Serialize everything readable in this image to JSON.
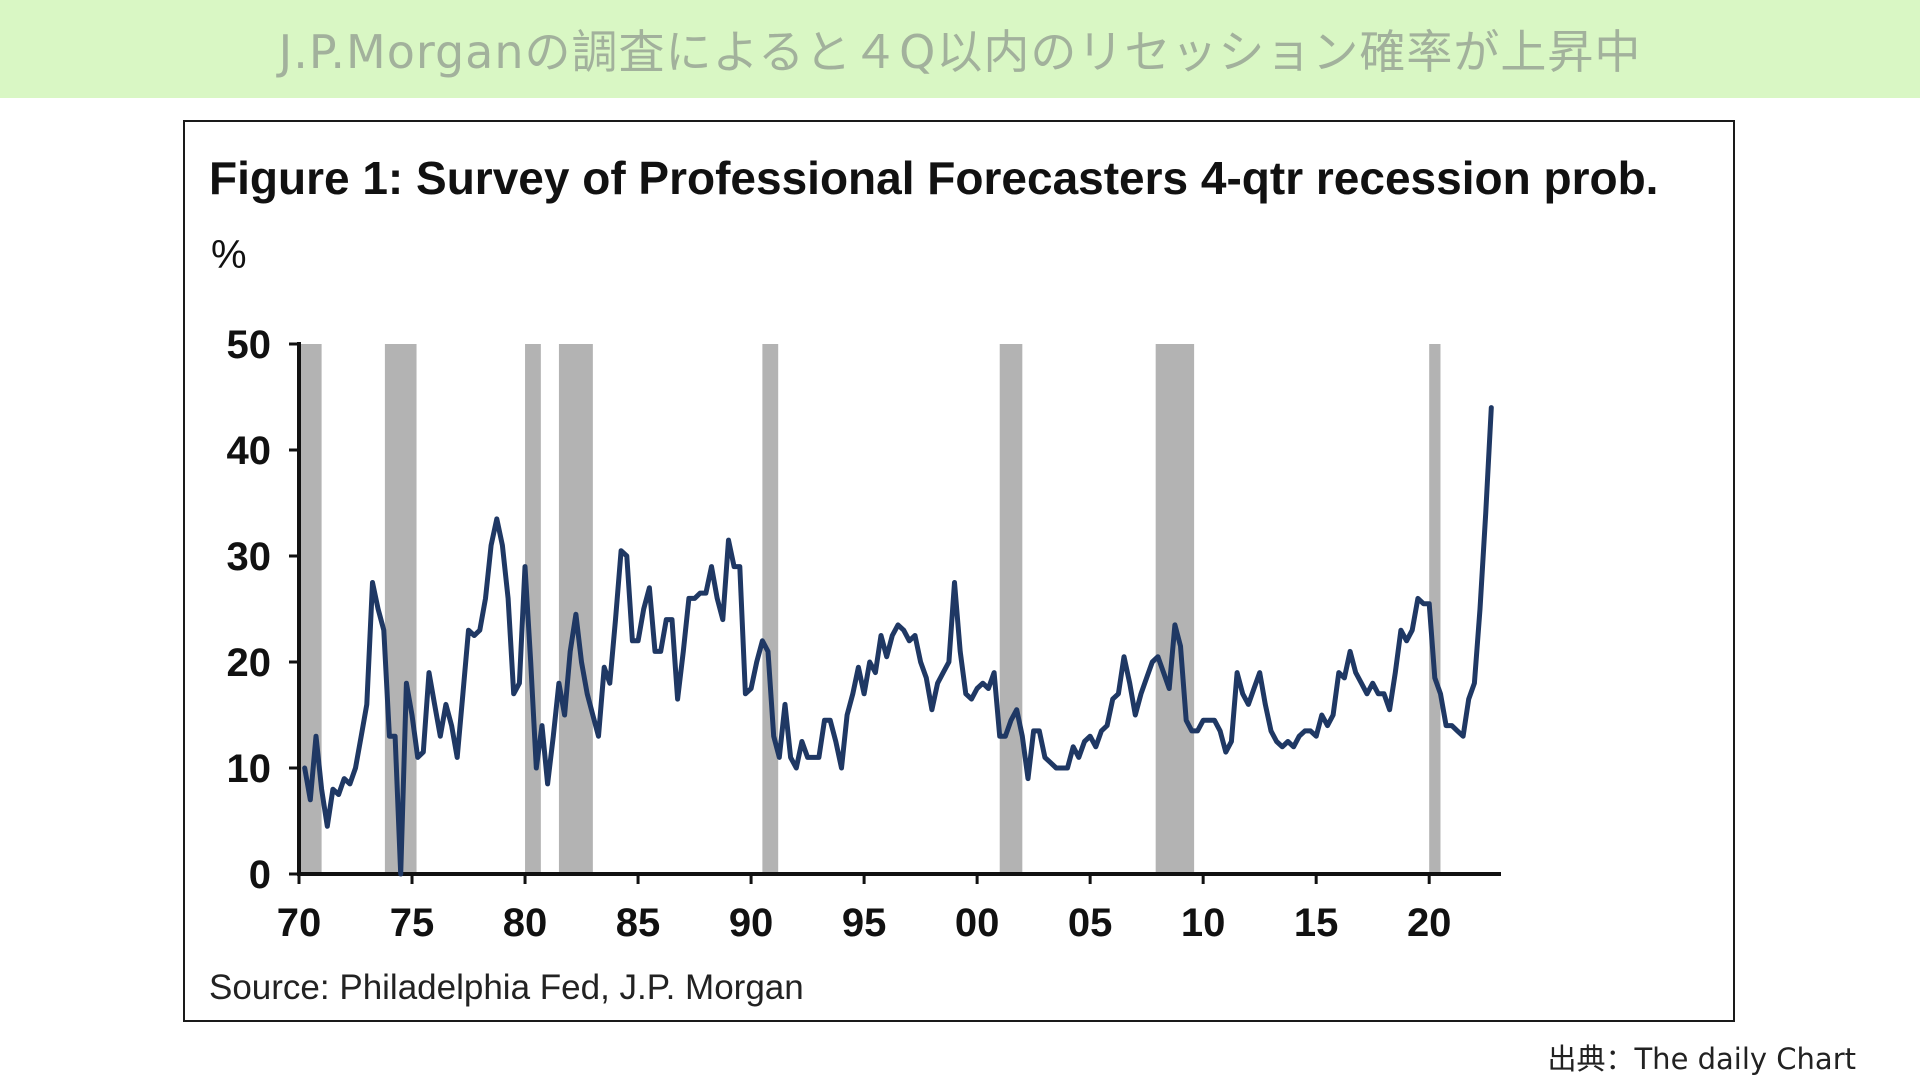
{
  "banner": {
    "title": "J.P.Morganの調査によると４Q以内のリセッション確率が上昇中",
    "bg_color": "#d9f7c4",
    "text_color": "#a2b19c"
  },
  "credit": "出典：The daily Chart",
  "chart_data": {
    "type": "line",
    "title": "Figure 1: Survey of Professional Forecasters 4-qtr recession prob.",
    "ylabel": "%",
    "source": "Source: Philadelphia Fed, J.P. Morgan",
    "xlim": [
      1970,
      2023
    ],
    "ylim": [
      0,
      50
    ],
    "x_tick_values": [
      1970,
      1975,
      1980,
      1985,
      1990,
      1995,
      2000,
      2005,
      2010,
      2015,
      2020
    ],
    "x_tick_labels": [
      "70",
      "75",
      "80",
      "85",
      "90",
      "95",
      "00",
      "05",
      "10",
      "15",
      "20"
    ],
    "y_ticks": [
      0,
      10,
      20,
      30,
      40,
      50
    ],
    "line_color": "#1f3864",
    "recession_color": "#b3b3b3",
    "recessions": [
      [
        1970.0,
        1971.0
      ],
      [
        1973.8,
        1975.2
      ],
      [
        1980.0,
        1980.7
      ],
      [
        1981.5,
        1983.0
      ],
      [
        1990.5,
        1991.2
      ],
      [
        2001.0,
        2002.0
      ],
      [
        2007.9,
        2009.6
      ],
      [
        2020.0,
        2020.5
      ]
    ],
    "series": [
      {
        "values": [
          [
            1970.25,
            10
          ],
          [
            1970.5,
            7
          ],
          [
            1970.75,
            13
          ],
          [
            1971.0,
            8
          ],
          [
            1971.25,
            4.5
          ],
          [
            1971.5,
            8
          ],
          [
            1971.75,
            7.5
          ],
          [
            1972.0,
            9
          ],
          [
            1972.25,
            8.5
          ],
          [
            1972.5,
            10
          ],
          [
            1972.75,
            13
          ],
          [
            1973.0,
            16
          ],
          [
            1973.25,
            27.5
          ],
          [
            1973.5,
            25
          ],
          [
            1973.75,
            23
          ],
          [
            1974.0,
            13
          ],
          [
            1974.25,
            13
          ],
          [
            1974.5,
            0
          ],
          [
            1974.75,
            18
          ],
          [
            1975.0,
            15
          ],
          [
            1975.25,
            11
          ],
          [
            1975.5,
            11.5
          ],
          [
            1975.75,
            19
          ],
          [
            1976.0,
            16
          ],
          [
            1976.25,
            13
          ],
          [
            1976.5,
            16
          ],
          [
            1976.75,
            14
          ],
          [
            1977.0,
            11
          ],
          [
            1977.25,
            17
          ],
          [
            1977.5,
            23
          ],
          [
            1977.75,
            22.5
          ],
          [
            1978.0,
            23
          ],
          [
            1978.25,
            26
          ],
          [
            1978.5,
            31
          ],
          [
            1978.75,
            33.5
          ],
          [
            1979.0,
            31
          ],
          [
            1979.25,
            26
          ],
          [
            1979.5,
            17
          ],
          [
            1979.75,
            18
          ],
          [
            1980.0,
            29
          ],
          [
            1980.25,
            20
          ],
          [
            1980.5,
            10
          ],
          [
            1980.75,
            14
          ],
          [
            1981.0,
            8.5
          ],
          [
            1981.25,
            13
          ],
          [
            1981.5,
            18
          ],
          [
            1981.75,
            15
          ],
          [
            1982.0,
            21
          ],
          [
            1982.25,
            24.5
          ],
          [
            1982.5,
            20
          ],
          [
            1982.75,
            17
          ],
          [
            1983.0,
            15
          ],
          [
            1983.25,
            13
          ],
          [
            1983.5,
            19.5
          ],
          [
            1983.75,
            18
          ],
          [
            1984.0,
            24
          ],
          [
            1984.25,
            30.5
          ],
          [
            1984.5,
            30
          ],
          [
            1984.75,
            22
          ],
          [
            1985.0,
            22
          ],
          [
            1985.25,
            25
          ],
          [
            1985.5,
            27
          ],
          [
            1985.75,
            21
          ],
          [
            1986.0,
            21
          ],
          [
            1986.25,
            24
          ],
          [
            1986.5,
            24
          ],
          [
            1986.75,
            16.5
          ],
          [
            1987.0,
            21
          ],
          [
            1987.25,
            26
          ],
          [
            1987.5,
            26
          ],
          [
            1987.75,
            26.5
          ],
          [
            1988.0,
            26.5
          ],
          [
            1988.25,
            29
          ],
          [
            1988.5,
            26
          ],
          [
            1988.75,
            24
          ],
          [
            1989.0,
            31.5
          ],
          [
            1989.25,
            29
          ],
          [
            1989.5,
            29
          ],
          [
            1989.75,
            17
          ],
          [
            1990.0,
            17.5
          ],
          [
            1990.25,
            20
          ],
          [
            1990.5,
            22
          ],
          [
            1990.75,
            21
          ],
          [
            1991.0,
            13
          ],
          [
            1991.25,
            11
          ],
          [
            1991.5,
            16
          ],
          [
            1991.75,
            11
          ],
          [
            1992.0,
            10
          ],
          [
            1992.25,
            12.5
          ],
          [
            1992.5,
            11
          ],
          [
            1992.75,
            11
          ],
          [
            1993.0,
            11
          ],
          [
            1993.25,
            14.5
          ],
          [
            1993.5,
            14.5
          ],
          [
            1993.75,
            12.5
          ],
          [
            1994.0,
            10
          ],
          [
            1994.25,
            15
          ],
          [
            1994.5,
            17
          ],
          [
            1994.75,
            19.5
          ],
          [
            1995.0,
            17
          ],
          [
            1995.25,
            20
          ],
          [
            1995.5,
            19
          ],
          [
            1995.75,
            22.5
          ],
          [
            1996.0,
            20.5
          ],
          [
            1996.25,
            22.5
          ],
          [
            1996.5,
            23.5
          ],
          [
            1996.75,
            23
          ],
          [
            1997.0,
            22
          ],
          [
            1997.25,
            22.5
          ],
          [
            1997.5,
            20
          ],
          [
            1997.75,
            18.5
          ],
          [
            1998.0,
            15.5
          ],
          [
            1998.25,
            18
          ],
          [
            1998.5,
            19
          ],
          [
            1998.75,
            20
          ],
          [
            1999.0,
            27.5
          ],
          [
            1999.25,
            21
          ],
          [
            1999.5,
            17
          ],
          [
            1999.75,
            16.5
          ],
          [
            2000.0,
            17.5
          ],
          [
            2000.25,
            18
          ],
          [
            2000.5,
            17.5
          ],
          [
            2000.75,
            19
          ],
          [
            2001.0,
            13
          ],
          [
            2001.25,
            13
          ],
          [
            2001.5,
            14.5
          ],
          [
            2001.75,
            15.5
          ],
          [
            2002.0,
            13
          ],
          [
            2002.25,
            9
          ],
          [
            2002.5,
            13.5
          ],
          [
            2002.75,
            13.5
          ],
          [
            2003.0,
            11
          ],
          [
            2003.25,
            10.5
          ],
          [
            2003.5,
            10
          ],
          [
            2003.75,
            10
          ],
          [
            2004.0,
            10
          ],
          [
            2004.25,
            12
          ],
          [
            2004.5,
            11
          ],
          [
            2004.75,
            12.5
          ],
          [
            2005.0,
            13
          ],
          [
            2005.25,
            12
          ],
          [
            2005.5,
            13.5
          ],
          [
            2005.75,
            14
          ],
          [
            2006.0,
            16.5
          ],
          [
            2006.25,
            17
          ],
          [
            2006.5,
            20.5
          ],
          [
            2006.75,
            18
          ],
          [
            2007.0,
            15
          ],
          [
            2007.25,
            17
          ],
          [
            2007.5,
            18.5
          ],
          [
            2007.75,
            20
          ],
          [
            2008.0,
            20.5
          ],
          [
            2008.25,
            19
          ],
          [
            2008.5,
            17.5
          ],
          [
            2008.75,
            23.5
          ],
          [
            2009.0,
            21.5
          ],
          [
            2009.25,
            14.5
          ],
          [
            2009.5,
            13.5
          ],
          [
            2009.75,
            13.5
          ],
          [
            2010.0,
            14.5
          ],
          [
            2010.25,
            14.5
          ],
          [
            2010.5,
            14.5
          ],
          [
            2010.75,
            13.5
          ],
          [
            2011.0,
            11.5
          ],
          [
            2011.25,
            12.5
          ],
          [
            2011.5,
            19
          ],
          [
            2011.75,
            17
          ],
          [
            2012.0,
            16
          ],
          [
            2012.25,
            17.5
          ],
          [
            2012.5,
            19
          ],
          [
            2012.75,
            16
          ],
          [
            2013.0,
            13.5
          ],
          [
            2013.25,
            12.5
          ],
          [
            2013.5,
            12
          ],
          [
            2013.75,
            12.5
          ],
          [
            2014.0,
            12
          ],
          [
            2014.25,
            13
          ],
          [
            2014.5,
            13.5
          ],
          [
            2014.75,
            13.5
          ],
          [
            2015.0,
            13
          ],
          [
            2015.25,
            15
          ],
          [
            2015.5,
            14
          ],
          [
            2015.75,
            15
          ],
          [
            2016.0,
            19
          ],
          [
            2016.25,
            18.5
          ],
          [
            2016.5,
            21
          ],
          [
            2016.75,
            19
          ],
          [
            2017.0,
            18
          ],
          [
            2017.25,
            17
          ],
          [
            2017.5,
            18
          ],
          [
            2017.75,
            17
          ],
          [
            2018.0,
            17
          ],
          [
            2018.25,
            15.5
          ],
          [
            2018.5,
            19
          ],
          [
            2018.75,
            23
          ],
          [
            2019.0,
            22
          ],
          [
            2019.25,
            23
          ],
          [
            2019.5,
            26
          ],
          [
            2019.75,
            25.5
          ],
          [
            2020.0,
            25.5
          ],
          [
            2020.25,
            18.5
          ],
          [
            2020.5,
            17
          ],
          [
            2020.75,
            14
          ],
          [
            2021.0,
            14
          ],
          [
            2021.25,
            13.5
          ],
          [
            2021.5,
            13
          ],
          [
            2021.75,
            16.5
          ],
          [
            2022.0,
            18
          ],
          [
            2022.25,
            25
          ],
          [
            2022.5,
            34
          ],
          [
            2022.75,
            44
          ]
        ]
      }
    ]
  }
}
